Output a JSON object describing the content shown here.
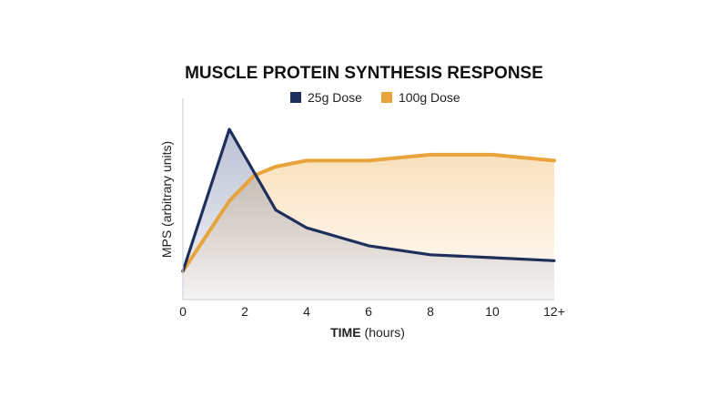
{
  "chart_data": {
    "type": "area",
    "title": "MUSCLE PROTEIN SYNTHESIS RESPONSE",
    "xlabel": "TIME",
    "xlabel_unit": "(hours)",
    "ylabel": "MPS (arbitrary units)",
    "x_ticks": [
      "0",
      "2",
      "4",
      "6",
      "8",
      "10",
      "12+"
    ],
    "xlim": [
      0,
      12
    ],
    "ylim": [
      0,
      100
    ],
    "grid": false,
    "legend_position": "top-center",
    "series": [
      {
        "name": "25g Dose",
        "color": "#1f2f5c",
        "x": [
          0,
          1.5,
          3,
          4,
          6,
          8,
          10,
          12
        ],
        "y": [
          5,
          100,
          46,
          34,
          22,
          16,
          14,
          12
        ]
      },
      {
        "name": "100g Dose",
        "color": "#e8a33a",
        "x": [
          0,
          1.5,
          2.3,
          3,
          4,
          6,
          8,
          10,
          12
        ],
        "y": [
          5,
          52,
          69,
          75,
          79,
          79,
          83,
          83,
          79
        ]
      }
    ]
  }
}
